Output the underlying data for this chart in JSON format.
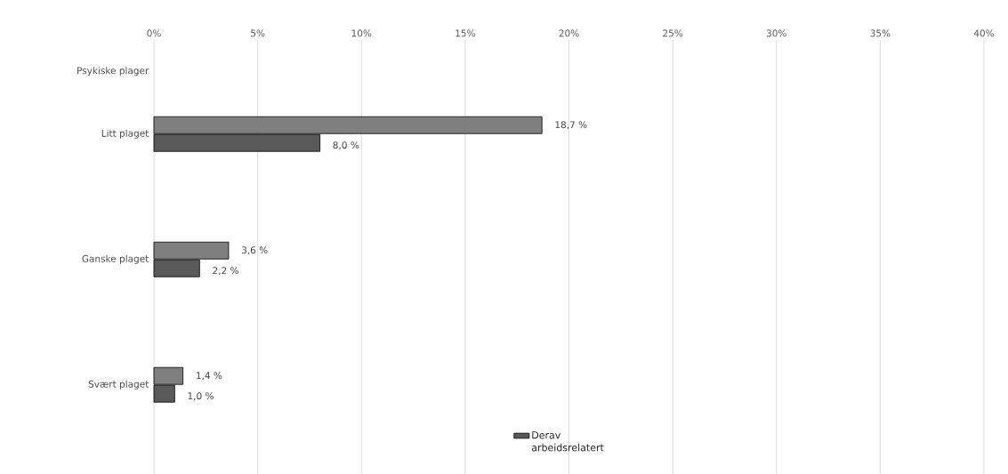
{
  "chart_data": {
    "type": "bar",
    "orientation": "horizontal",
    "categories": [
      "Psykiske plager",
      "Litt plaget",
      null,
      "Ganske plaget",
      null,
      "Svært plaget",
      null
    ],
    "series": [
      {
        "color": "#7f7f7f",
        "values": [
          null,
          18.7,
          null,
          3.6,
          null,
          1.4,
          null
        ],
        "value_labels": [
          null,
          "18,7 %",
          null,
          "3,6 %",
          null,
          "1,4 %",
          null
        ]
      },
      {
        "name": "Derav arbeidsrelatert",
        "color": "#595959",
        "values": [
          null,
          8.0,
          null,
          2.2,
          null,
          1.0,
          null
        ],
        "value_labels": [
          null,
          "8,0 %",
          null,
          "2,2 %",
          null,
          "1,0 %",
          null
        ]
      }
    ],
    "xlim": [
      0,
      40
    ],
    "xticks": [
      {
        "value": 0,
        "label": "0%"
      },
      {
        "value": 5,
        "label": "5%"
      },
      {
        "value": 10,
        "label": "10%"
      },
      {
        "value": 15,
        "label": "15%"
      },
      {
        "value": 20,
        "label": "20%"
      },
      {
        "value": 25,
        "label": "25%"
      },
      {
        "value": 30,
        "label": "30%"
      },
      {
        "value": 35,
        "label": "35%"
      },
      {
        "value": 40,
        "label": "40%"
      }
    ],
    "grid": "x",
    "legend": "bottom"
  }
}
